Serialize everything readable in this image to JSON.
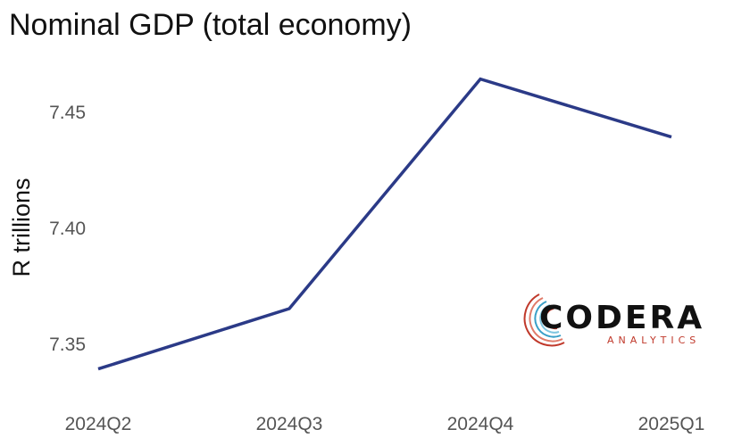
{
  "chart_data": {
    "type": "line",
    "title": "Nominal GDP (total economy)",
    "xlabel": "",
    "ylabel": "R trillions",
    "categories": [
      "2024Q2",
      "2024Q3",
      "2024Q4",
      "2025Q1"
    ],
    "series": [
      {
        "values": [
          7.339,
          7.365,
          7.464,
          7.439
        ],
        "color": "#2b3a87"
      }
    ],
    "yticks": [
      "7.35",
      "7.40",
      "7.45"
    ],
    "ylim": [
      7.325,
      7.475
    ],
    "grid": false,
    "legend": "none"
  },
  "logo": {
    "name": "CODERA",
    "tagline": "ANALYTICS",
    "icon": "codera-swirl-icon"
  }
}
